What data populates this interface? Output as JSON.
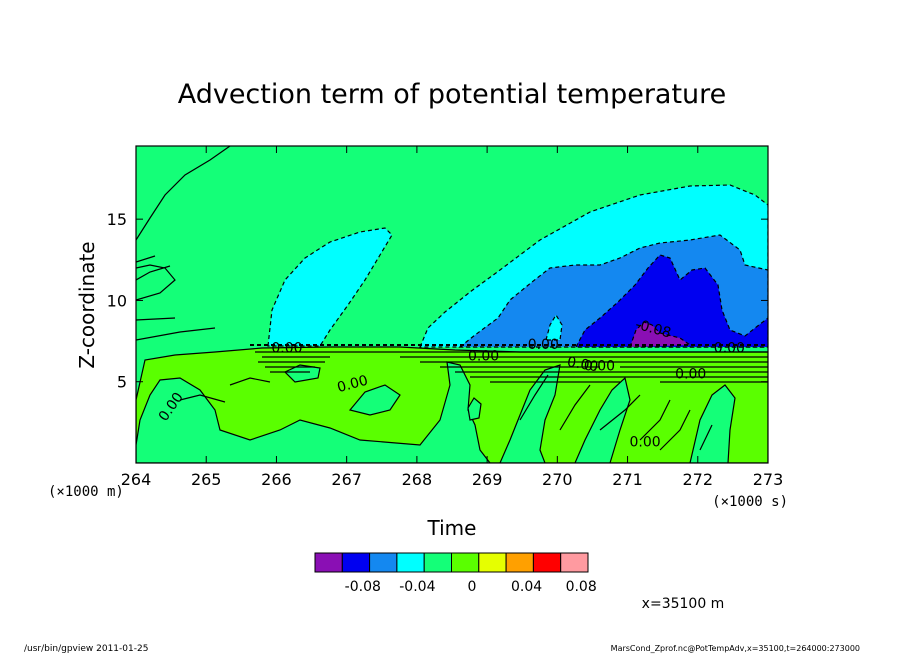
{
  "chart_data": {
    "type": "heatmap",
    "title": "Advection term of potential temperature",
    "xlabel": "Time",
    "ylabel": "Z-coordinate",
    "x_unit_note": "(×1000 s)",
    "y_unit_note": "(×1000 m)",
    "xlim": [
      264,
      273
    ],
    "ylim": [
      0,
      19.5
    ],
    "xticks": [
      264,
      265,
      266,
      267,
      268,
      269,
      270,
      271,
      272,
      273
    ],
    "yticks": [
      5,
      10,
      15
    ],
    "colorbar": {
      "colors": [
        "#8a0fb4",
        "#0000f0",
        "#1488f0",
        "#00ffff",
        "#14ff78",
        "#5aff00",
        "#e6ff00",
        "#ffa000",
        "#ff0000",
        "#ff9aa0"
      ],
      "labels": [
        "-0.08",
        "-0.04",
        "0",
        "0.04",
        "0.08"
      ]
    },
    "contour_labels": [
      {
        "text": "0.00",
        "x": 264.55,
        "y": 3.3,
        "angle": -55
      },
      {
        "text": "0.00",
        "x": 266.15,
        "y": 6.8,
        "angle": 0
      },
      {
        "text": "0.00",
        "x": 267.1,
        "y": 4.6,
        "angle": -15
      },
      {
        "text": "0.00",
        "x": 268.95,
        "y": 6.3,
        "angle": 0
      },
      {
        "text": "0.00",
        "x": 269.8,
        "y": 7.0,
        "angle": 0
      },
      {
        "text": "0.00",
        "x": 270.35,
        "y": 5.8,
        "angle": 10
      },
      {
        "text": "0.00",
        "x": 270.6,
        "y": 5.7,
        "angle": 0
      },
      {
        "text": "-0.08",
        "x": 271.35,
        "y": 8.0,
        "angle": 15
      },
      {
        "text": "0.00",
        "x": 271.25,
        "y": 1.0,
        "angle": 0
      },
      {
        "text": "0.00",
        "x": 271.9,
        "y": 5.2,
        "angle": 0
      },
      {
        "text": "0.00",
        "x": 272.45,
        "y": 6.8,
        "angle": 0
      }
    ]
  },
  "annotations": {
    "position_note": "x=35100 m",
    "footer_left": "/usr/bin/gpview  2011-01-25",
    "footer_right": "MarsCond_Zprof.nc@PotTempAdv,x=35100,t=264000:273000"
  }
}
